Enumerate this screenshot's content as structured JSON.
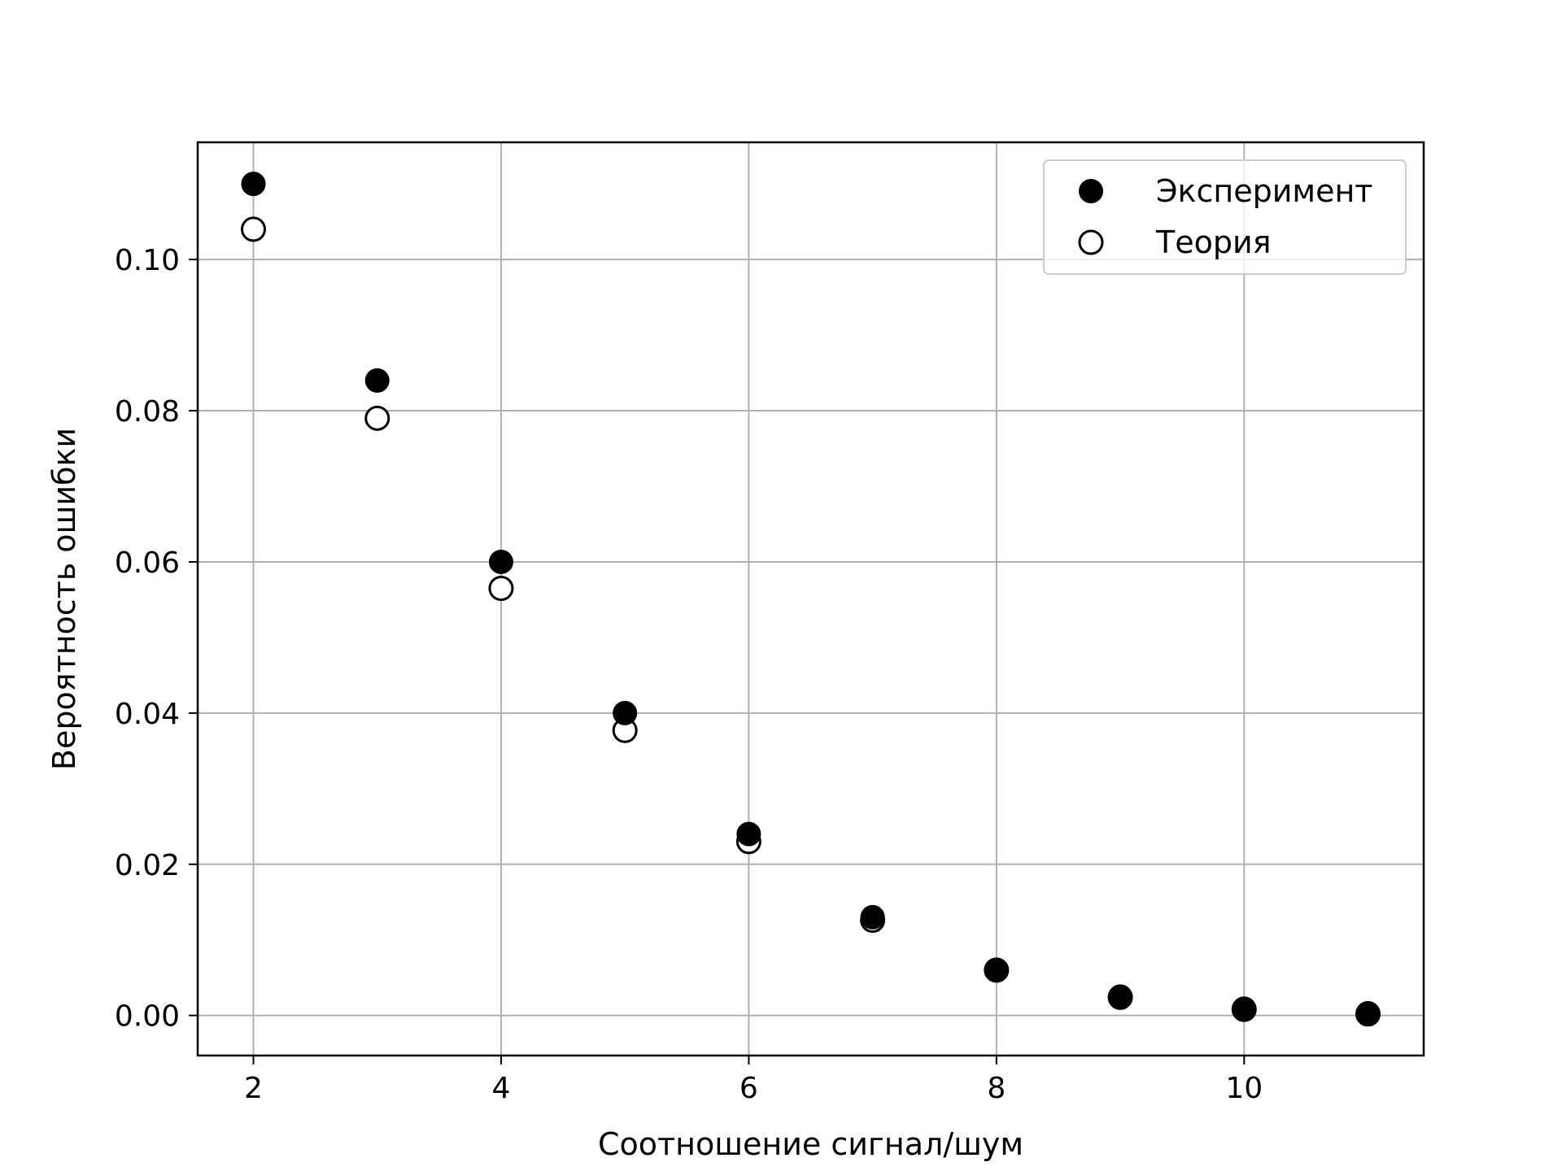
{
  "chart_data": {
    "type": "scatter",
    "xlabel": "Соотношение сигнал/шум",
    "ylabel": "Вероятность ошибки",
    "xlim": [
      1.55,
      11.45
    ],
    "ylim": [
      -0.0053,
      0.1155
    ],
    "xticks": [
      2,
      4,
      6,
      8,
      10
    ],
    "xtick_labels": [
      "2",
      "4",
      "6",
      "8",
      "10"
    ],
    "yticks": [
      0.0,
      0.02,
      0.04,
      0.06,
      0.08,
      0.1
    ],
    "ytick_labels": [
      "0.00",
      "0.02",
      "0.04",
      "0.06",
      "0.08",
      "0.10"
    ],
    "grid": true,
    "legend_position": "top-right",
    "series": [
      {
        "name": "Эксперимент",
        "marker": "filled-circle",
        "color": "#000000",
        "x": [
          2,
          3,
          4,
          5,
          6,
          7,
          8,
          9,
          10,
          11
        ],
        "y": [
          0.11,
          0.084,
          0.06,
          0.04,
          0.024,
          0.013,
          0.006,
          0.0025,
          0.0009,
          0.0003
        ]
      },
      {
        "name": "Теория",
        "marker": "open-circle",
        "color": "#000000",
        "x": [
          2,
          3,
          4,
          5,
          6,
          7,
          8,
          9,
          10,
          11
        ],
        "y": [
          0.104,
          0.079,
          0.0565,
          0.0377,
          0.023,
          0.0126,
          0.006,
          0.0024,
          0.0008,
          0.0002
        ]
      }
    ]
  }
}
